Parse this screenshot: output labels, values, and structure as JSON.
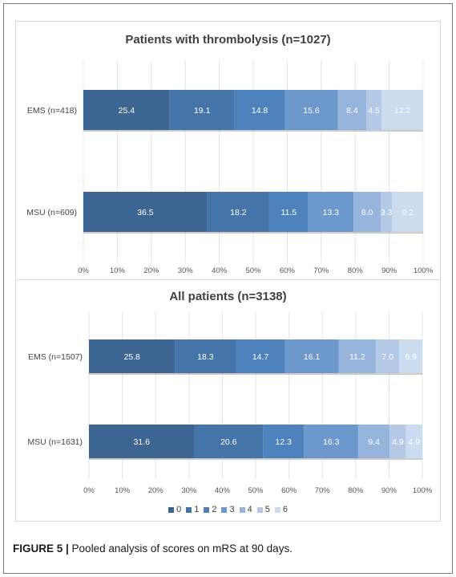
{
  "caption": {
    "label": "FIGURE 5 |",
    "text": " Pooled analysis of scores on mRS at 90 days."
  },
  "legend": {
    "items": [
      "0",
      "1",
      "2",
      "3",
      "4",
      "5",
      "6"
    ]
  },
  "colors": [
    "#3c6592",
    "#4574a8",
    "#4d82bd",
    "#6d98cc",
    "#96b4dc",
    "#b3c9e6",
    "#ccdcf0"
  ],
  "chart_data": [
    {
      "type": "bar",
      "orientation": "horizontal",
      "stacked": "100%",
      "title": "Patients with thrombolysis  (n=1027)",
      "categories": [
        "EMS (n=418)",
        "MSU (n=609)"
      ],
      "series": [
        {
          "name": "0",
          "values": [
            25.4,
            36.5
          ]
        },
        {
          "name": "1",
          "values": [
            19.1,
            18.2
          ]
        },
        {
          "name": "2",
          "values": [
            14.8,
            11.5
          ]
        },
        {
          "name": "3",
          "values": [
            15.6,
            13.3
          ]
        },
        {
          "name": "4",
          "values": [
            8.4,
            8.0
          ]
        },
        {
          "name": "5",
          "values": [
            4.5,
            3.3
          ]
        },
        {
          "name": "6",
          "values": [
            12.2,
            9.2
          ]
        }
      ],
      "xticks": [
        "0%",
        "10%",
        "20%",
        "30%",
        "40%",
        "50%",
        "60%",
        "70%",
        "80%",
        "90%",
        "100%"
      ],
      "xlim": [
        0,
        100
      ],
      "grid": true
    },
    {
      "type": "bar",
      "orientation": "horizontal",
      "stacked": "100%",
      "title": "All patients  (n=3138)",
      "categories": [
        "EMS (n=1507)",
        "MSU (n=1631)"
      ],
      "series": [
        {
          "name": "0",
          "values": [
            25.8,
            31.6
          ]
        },
        {
          "name": "1",
          "values": [
            18.3,
            20.6
          ]
        },
        {
          "name": "2",
          "values": [
            14.7,
            12.3
          ]
        },
        {
          "name": "3",
          "values": [
            16.1,
            16.3
          ]
        },
        {
          "name": "4",
          "values": [
            11.2,
            9.4
          ]
        },
        {
          "name": "5",
          "values": [
            7.0,
            4.9
          ]
        },
        {
          "name": "6",
          "values": [
            6.9,
            4.9
          ]
        }
      ],
      "xticks": [
        "0%",
        "10%",
        "20%",
        "30%",
        "40%",
        "50%",
        "60%",
        "70%",
        "80%",
        "90%",
        "100%"
      ],
      "xlim": [
        0,
        100
      ],
      "grid": true,
      "legend": "bottom"
    }
  ]
}
